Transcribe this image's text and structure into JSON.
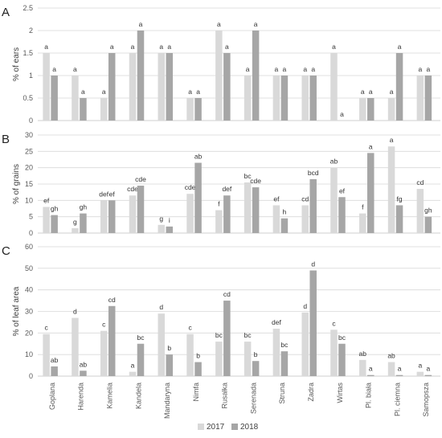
{
  "chart_data": {
    "type": "bar",
    "colors": {
      "2017": "#d9d9d9",
      "2018": "#a6a6a6",
      "grid": "#d9d9d9",
      "axis": "#bfbfbf"
    },
    "categories": [
      "Goplana",
      "Harenda",
      "Kamelia",
      "Kandela",
      "Mandaryna",
      "Nimfa",
      "Rusałka",
      "Serenada",
      "Struna",
      "Zadra",
      "Wirtas",
      "Pl. biała",
      "Pl. ciemna",
      "Samopsza"
    ],
    "legend": [
      {
        "name": "2017",
        "color": "#d9d9d9"
      },
      {
        "name": "2018",
        "color": "#a6a6a6"
      }
    ],
    "legend_position": "bottom-right",
    "panels": [
      {
        "panel": "A",
        "ylabel": "% of ears",
        "ylim": [
          0,
          2.5
        ],
        "ticks": [
          "0",
          "0.5",
          "1",
          "1.5",
          "2",
          "2.5"
        ],
        "tick_values": [
          0,
          0.5,
          1,
          1.5,
          2,
          2.5
        ],
        "series": [
          {
            "name": "2017",
            "values": [
              1.5,
              1.0,
              0.5,
              1.5,
              1.5,
              0.5,
              2.0,
              1.0,
              1.0,
              1.0,
              1.5,
              0.5,
              0.5,
              1.0
            ],
            "labels": [
              "a",
              "a",
              "a",
              "a",
              "a",
              "a",
              "a",
              "a",
              "a",
              "a",
              "a",
              "a",
              "a",
              "a"
            ]
          },
          {
            "name": "2018",
            "values": [
              1.0,
              0.5,
              1.5,
              2.0,
              1.5,
              0.5,
              1.5,
              2.0,
              1.0,
              1.0,
              0.0,
              0.5,
              1.5,
              1.0
            ],
            "labels": [
              "a",
              "a",
              "a",
              "a",
              "a",
              "a",
              "a",
              "a",
              "a",
              "a",
              "a",
              "a",
              "a",
              "a"
            ]
          }
        ]
      },
      {
        "panel": "B",
        "ylabel": "% of grains",
        "ylim": [
          0,
          30
        ],
        "ticks": [
          "0",
          "5",
          "10",
          "15",
          "20",
          "25",
          "30"
        ],
        "tick_values": [
          0,
          5,
          10,
          15,
          20,
          25,
          30
        ],
        "series": [
          {
            "name": "2017",
            "values": [
              8.0,
              1.5,
              10.0,
              11.5,
              2.5,
              12.0,
              7.0,
              15.5,
              8.5,
              8.5,
              20.0,
              6.0,
              26.5,
              13.5
            ],
            "labels": [
              "ef",
              "g",
              "def",
              "cde",
              "g",
              "cde",
              "f",
              "bc",
              "ef",
              "cd",
              "ab",
              "f",
              "a",
              "cd"
            ]
          },
          {
            "name": "2018",
            "values": [
              5.5,
              6.0,
              10.0,
              14.5,
              2.0,
              21.5,
              11.5,
              14.0,
              4.5,
              16.5,
              11.0,
              24.5,
              8.5,
              5.0
            ],
            "labels": [
              "gh",
              "gh",
              "ef",
              "cde",
              "i",
              "ab",
              "def",
              "cde",
              "h",
              "bcd",
              "ef",
              "a",
              "fg",
              "gh"
            ]
          }
        ]
      },
      {
        "panel": "C",
        "ylabel": "% of leaf area",
        "ylim": [
          0,
          60
        ],
        "ticks": [
          "0",
          "10",
          "20",
          "30",
          "40",
          "50",
          "60"
        ],
        "tick_values": [
          0,
          10,
          20,
          30,
          40,
          50,
          60
        ],
        "series": [
          {
            "name": "2017",
            "values": [
              19.5,
              27.0,
              21.0,
              2.0,
              29.0,
              19.5,
              16.0,
              16.0,
              22.0,
              29.5,
              21.5,
              7.5,
              6.5,
              2.0
            ],
            "labels": [
              "c",
              "d",
              "c",
              "a",
              "d",
              "c",
              "bc",
              "bc",
              "def",
              "d",
              "c",
              "ab",
              "ab",
              "a"
            ]
          },
          {
            "name": "2018",
            "values": [
              4.5,
              2.5,
              32.5,
              15.0,
              10.0,
              6.5,
              35.0,
              7.0,
              11.5,
              49.0,
              15.0,
              0.5,
              0.5,
              0.5
            ],
            "labels": [
              "ab",
              "ab",
              "cd",
              "bc",
              "b",
              "b",
              "cd",
              "b",
              "bc",
              "d",
              "bc",
              "a",
              "a",
              "a"
            ]
          }
        ]
      }
    ]
  }
}
